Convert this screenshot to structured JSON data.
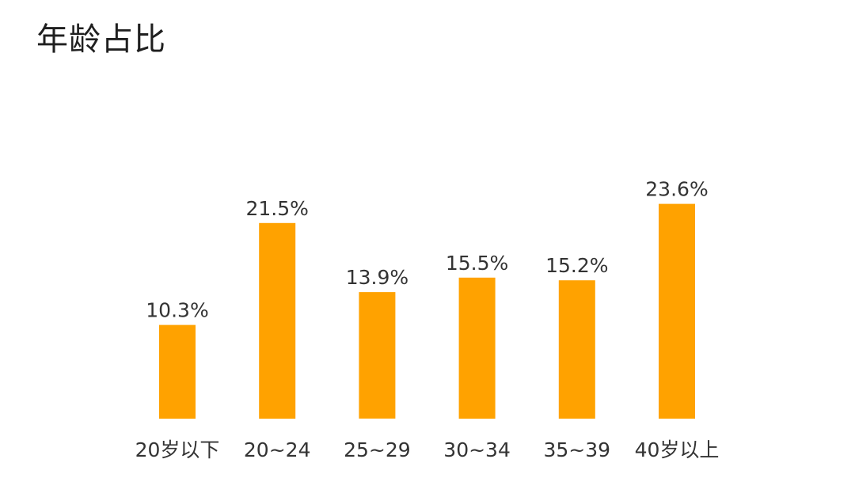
{
  "chart_data": {
    "type": "bar",
    "title": "年龄占比",
    "categories": [
      "20岁以下",
      "20~24",
      "25~29",
      "30~34",
      "35~39",
      "40岁以上"
    ],
    "values": [
      10.3,
      21.5,
      13.9,
      15.5,
      15.2,
      23.6
    ],
    "value_labels": [
      "10.3%",
      "21.5%",
      "13.9%",
      "15.5%",
      "15.2%",
      "23.6%"
    ],
    "unit": "%",
    "ylim": [
      0,
      25
    ],
    "grid": false,
    "legend": "none",
    "bar_color": "#FFA200"
  }
}
